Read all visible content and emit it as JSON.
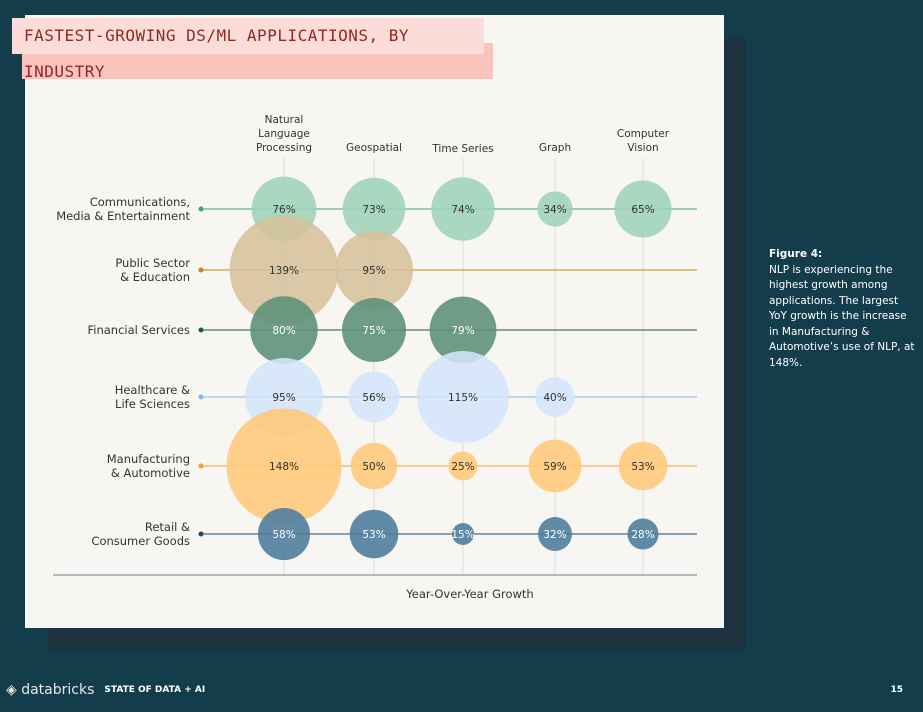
{
  "chart_data": {
    "type": "bubble",
    "title": "FASTEST-GROWING DS/ML APPLICATIONS, BY INDUSTRY",
    "xlabel": "Year-Over-Year Growth",
    "columns": [
      "Natural Language Processing",
      "Geospatial",
      "Time Series",
      "Graph",
      "Computer Vision"
    ],
    "rows": [
      {
        "name": "Communications, Media & Entertainment",
        "fill": "#9dd3b7",
        "line": "#3ea37a",
        "values": [
          76,
          73,
          74,
          34,
          65
        ]
      },
      {
        "name": "Public Sector & Education",
        "fill": "#d6c19c",
        "line": "#c08628",
        "values": [
          139,
          95,
          null,
          null,
          null
        ]
      },
      {
        "name": "Financial Services",
        "fill": "#5b8f76",
        "line": "#1c5a42",
        "values": [
          80,
          75,
          79,
          null,
          null
        ]
      },
      {
        "name": "Healthcare & Life Sciences",
        "fill": "#d3e5fb",
        "line": "#86b6e6",
        "values": [
          95,
          56,
          115,
          40,
          null
        ]
      },
      {
        "name": "Manufacturing & Automotive",
        "fill": "#ffc879",
        "line": "#f0a030",
        "values": [
          148,
          50,
          25,
          59,
          53
        ]
      },
      {
        "name": "Retail & Consumer Goods",
        "fill": "#4b7b9c",
        "line": "#1e4a6a",
        "values": [
          58,
          53,
          15,
          32,
          28
        ]
      }
    ]
  },
  "sidebar": {
    "heading": "Figure 4:",
    "text": "NLP is experiencing the highest growth among applications. The largest YoY growth is the increase in Manufacturing & Automotive’s use of NLP, at 148%."
  },
  "footer": {
    "logo": "databricks",
    "subtitle": "STATE OF DATA + AI",
    "page": "15"
  }
}
